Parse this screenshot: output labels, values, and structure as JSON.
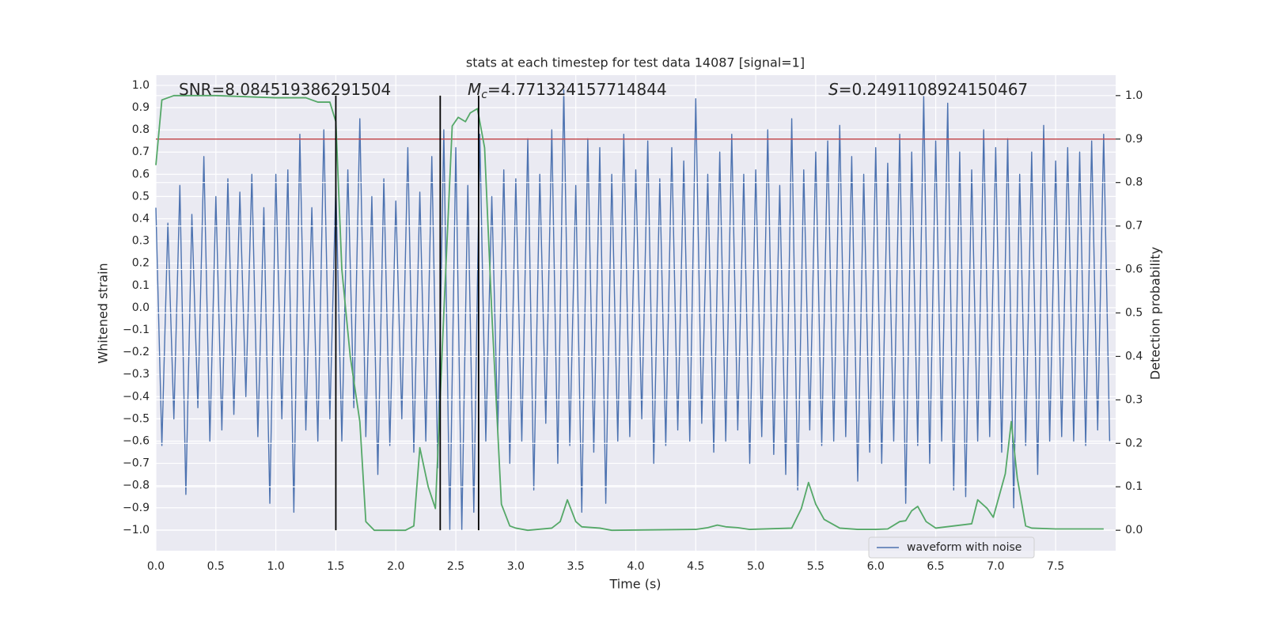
{
  "chart_data": {
    "type": "line",
    "title": "stats at each timestep for test data 14087 [signal=1]",
    "xlabel": "Time (s)",
    "ylabel": "Whitened strain",
    "y2label": "Detection probability",
    "annotations": [
      {
        "parts": [
          "SNR=8.084519386291504"
        ]
      },
      {
        "parts": [
          "M",
          "c",
          "=4.771324157714844"
        ]
      },
      {
        "parts": [
          "S",
          "=0.2491108924150467"
        ]
      }
    ],
    "xlim": [
      0,
      8.0
    ],
    "ylim": [
      -1.093,
      1.046
    ],
    "y2lim": [
      -0.047,
      1.047
    ],
    "xticks": [
      {
        "value": 0,
        "label": "0.0"
      },
      {
        "value": 0.5,
        "label": "0.5"
      },
      {
        "value": 1,
        "label": "1.0"
      },
      {
        "value": 1.5,
        "label": "1.5"
      },
      {
        "value": 2,
        "label": "2.0"
      },
      {
        "value": 2.5,
        "label": "2.5"
      },
      {
        "value": 3,
        "label": "3.0"
      },
      {
        "value": 3.5,
        "label": "3.5"
      },
      {
        "value": 4,
        "label": "4.0"
      },
      {
        "value": 4.5,
        "label": "4.5"
      },
      {
        "value": 5,
        "label": "5.0"
      },
      {
        "value": 5.5,
        "label": "5.5"
      },
      {
        "value": 6,
        "label": "6.0"
      },
      {
        "value": 6.5,
        "label": "6.5"
      },
      {
        "value": 7,
        "label": "7.0"
      },
      {
        "value": 7.5,
        "label": "7.5"
      }
    ],
    "yticks": [
      {
        "value": 1,
        "label": "1.0"
      },
      {
        "value": 0.9,
        "label": "0.9"
      },
      {
        "value": 0.8,
        "label": "0.8"
      },
      {
        "value": 0.7,
        "label": "0.7"
      },
      {
        "value": 0.6,
        "label": "0.6"
      },
      {
        "value": 0.5,
        "label": "0.5"
      },
      {
        "value": 0.4,
        "label": "0.4"
      },
      {
        "value": 0.3,
        "label": "0.3"
      },
      {
        "value": 0.2,
        "label": "0.2"
      },
      {
        "value": 0.1,
        "label": "0.1"
      },
      {
        "value": 0,
        "label": "0.0"
      },
      {
        "value": -0.1,
        "label": "−0.1"
      },
      {
        "value": -0.2,
        "label": "−0.2"
      },
      {
        "value": -0.3,
        "label": "−0.3"
      },
      {
        "value": -0.4,
        "label": "−0.4"
      },
      {
        "value": -0.5,
        "label": "−0.5"
      },
      {
        "value": -0.6,
        "label": "−0.6"
      },
      {
        "value": -0.7,
        "label": "−0.7"
      },
      {
        "value": -0.8,
        "label": "−0.8"
      },
      {
        "value": -0.9,
        "label": "−0.9"
      },
      {
        "value": -1,
        "label": "−1.0"
      }
    ],
    "y2ticks": [
      {
        "value": 0,
        "label": "0.0"
      },
      {
        "value": 0.1,
        "label": "0.1"
      },
      {
        "value": 0.2,
        "label": "0.2"
      },
      {
        "value": 0.3,
        "label": "0.3"
      },
      {
        "value": 0.4,
        "label": "0.4"
      },
      {
        "value": 0.5,
        "label": "0.5"
      },
      {
        "value": 0.6,
        "label": "0.6"
      },
      {
        "value": 0.7,
        "label": "0.7"
      },
      {
        "value": 0.8,
        "label": "0.8"
      },
      {
        "value": 0.9,
        "label": "0.9"
      },
      {
        "value": 1,
        "label": "1.0"
      }
    ],
    "grid": true,
    "legend": "lower right",
    "series": [
      {
        "name": "waveform with noise",
        "color": "#4c72b0",
        "x": [
          0,
          0.05,
          0.1,
          0.15,
          0.2,
          0.25,
          0.3,
          0.35,
          0.4,
          0.45,
          0.5,
          0.55,
          0.6,
          0.65,
          0.7,
          0.75,
          0.8,
          0.85,
          0.9,
          0.95,
          1,
          1.05,
          1.1,
          1.15,
          1.2,
          1.25,
          1.3,
          1.35,
          1.4,
          1.45,
          1.5,
          1.55,
          1.6,
          1.65,
          1.7,
          1.75,
          1.8,
          1.85,
          1.9,
          1.95,
          2,
          2.05,
          2.1,
          2.15,
          2.2,
          2.25,
          2.3,
          2.35,
          2.4,
          2.45,
          2.5,
          2.55,
          2.6,
          2.65,
          2.7,
          2.75,
          2.8,
          2.85,
          2.9,
          2.95,
          3,
          3.05,
          3.1,
          3.15,
          3.2,
          3.25,
          3.3,
          3.35,
          3.4,
          3.45,
          3.5,
          3.55,
          3.6,
          3.65,
          3.7,
          3.75,
          3.8,
          3.85,
          3.9,
          3.95,
          4,
          4.05,
          4.1,
          4.15,
          4.2,
          4.25,
          4.3,
          4.35,
          4.4,
          4.45,
          4.5,
          4.55,
          4.6,
          4.65,
          4.7,
          4.75,
          4.8,
          4.85,
          4.9,
          4.95,
          5,
          5.05,
          5.1,
          5.15,
          5.2,
          5.25,
          5.3,
          5.35,
          5.4,
          5.45,
          5.5,
          5.55,
          5.6,
          5.65,
          5.7,
          5.75,
          5.8,
          5.85,
          5.9,
          5.95,
          6,
          6.05,
          6.1,
          6.15,
          6.2,
          6.25,
          6.3,
          6.35,
          6.4,
          6.45,
          6.5,
          6.55,
          6.6,
          6.65,
          6.7,
          6.75,
          6.8,
          6.85,
          6.9,
          6.95,
          7,
          7.05,
          7.1,
          7.15,
          7.2,
          7.25,
          7.3,
          7.35,
          7.4,
          7.45,
          7.5,
          7.55,
          7.6,
          7.65,
          7.7,
          7.75,
          7.8,
          7.85,
          7.9,
          7.95
        ],
        "values": [
          0.45,
          -0.62,
          0.38,
          -0.5,
          0.55,
          -0.84,
          0.42,
          -0.45,
          0.68,
          -0.6,
          0.5,
          -0.55,
          0.58,
          -0.48,
          0.52,
          -0.4,
          0.6,
          -0.58,
          0.45,
          -0.88,
          0.6,
          -0.5,
          0.62,
          -0.92,
          0.78,
          -0.55,
          0.45,
          -0.6,
          0.8,
          -0.5,
          0.55,
          -0.6,
          0.62,
          -0.45,
          0.85,
          -0.58,
          0.5,
          -0.75,
          0.58,
          -0.62,
          0.48,
          -0.5,
          0.72,
          -0.65,
          0.52,
          -0.6,
          0.68,
          -0.72,
          0.8,
          -1.0,
          0.72,
          -1.0,
          0.55,
          -0.92,
          0.78,
          -0.6,
          0.5,
          -0.55,
          0.62,
          -0.7,
          0.58,
          -0.6,
          0.76,
          -0.82,
          0.6,
          -0.52,
          0.8,
          -0.7,
          0.98,
          -0.62,
          0.55,
          -0.92,
          0.76,
          -0.65,
          0.72,
          -0.88,
          0.6,
          -0.6,
          0.78,
          -0.58,
          0.62,
          -0.5,
          0.75,
          -0.7,
          0.58,
          -0.62,
          0.72,
          -0.55,
          0.66,
          -0.6,
          0.94,
          -0.52,
          0.6,
          -0.65,
          0.7,
          -0.6,
          0.78,
          -0.55,
          0.6,
          -0.7,
          0.62,
          -0.58,
          0.8,
          -0.66,
          0.55,
          -0.75,
          0.85,
          -0.82,
          0.62,
          -0.55,
          0.7,
          -0.62,
          0.75,
          -0.6,
          0.82,
          -0.58,
          0.68,
          -0.78,
          0.6,
          -0.65,
          0.72,
          -0.7,
          0.65,
          -0.6,
          0.78,
          -0.88,
          0.7,
          -0.62,
          0.95,
          -0.7,
          0.75,
          -0.6,
          0.92,
          -0.82,
          0.7,
          -0.85,
          0.62,
          -0.6,
          0.8,
          -0.58,
          0.72,
          -0.65,
          0.76,
          -0.9,
          0.6,
          -0.62,
          0.7,
          -0.75,
          0.82,
          -0.6,
          0.66,
          -0.58,
          0.72,
          -0.6,
          0.7,
          -0.62,
          0.75,
          -0.55,
          0.78,
          -0.6
        ]
      },
      {
        "color": "#55a868",
        "axis": "y2",
        "x": [
          0,
          0.05,
          0.15,
          0.5,
          1,
          1.25,
          1.35,
          1.45,
          1.5,
          1.55,
          1.62,
          1.7,
          1.75,
          1.82,
          2,
          2.08,
          2.15,
          2.2,
          2.27,
          2.33,
          2.4,
          2.47,
          2.52,
          2.58,
          2.62,
          2.68,
          2.74,
          2.8,
          2.88,
          2.95,
          3,
          3.1,
          3.3,
          3.37,
          3.43,
          3.5,
          3.55,
          3.7,
          3.8,
          4.5,
          4.6,
          4.68,
          4.75,
          4.85,
          4.95,
          5.3,
          5.38,
          5.44,
          5.5,
          5.57,
          5.7,
          5.85,
          6,
          6.1,
          6.2,
          6.25,
          6.3,
          6.35,
          6.42,
          6.5,
          6.8,
          6.85,
          6.93,
          6.98,
          7.03,
          7.08,
          7.13,
          7.18,
          7.25,
          7.3,
          7.5,
          7.9
        ],
        "values": [
          0.84,
          0.99,
          1.0,
          1.0,
          0.995,
          0.995,
          0.985,
          0.985,
          0.94,
          0.6,
          0.4,
          0.25,
          0.02,
          0.0,
          0.0,
          0.0,
          0.01,
          0.19,
          0.1,
          0.05,
          0.5,
          0.93,
          0.95,
          0.94,
          0.96,
          0.97,
          0.88,
          0.5,
          0.06,
          0.01,
          0.005,
          0.0,
          0.005,
          0.02,
          0.07,
          0.02,
          0.008,
          0.005,
          0.0,
          0.002,
          0.006,
          0.012,
          0.008,
          0.006,
          0.002,
          0.005,
          0.05,
          0.11,
          0.06,
          0.025,
          0.005,
          0.002,
          0.002,
          0.003,
          0.02,
          0.022,
          0.045,
          0.055,
          0.02,
          0.005,
          0.015,
          0.07,
          0.05,
          0.03,
          0.08,
          0.13,
          0.25,
          0.12,
          0.01,
          0.005,
          0.003,
          0.003
        ]
      }
    ],
    "hline": {
      "value": 0.9,
      "axis": "y2",
      "color": "#c44e52"
    },
    "vlines": {
      "x": [
        1.5,
        2.37,
        2.69
      ],
      "ymin": 0,
      "ymax": 1,
      "axis": "y2",
      "color": "#000000"
    }
  }
}
